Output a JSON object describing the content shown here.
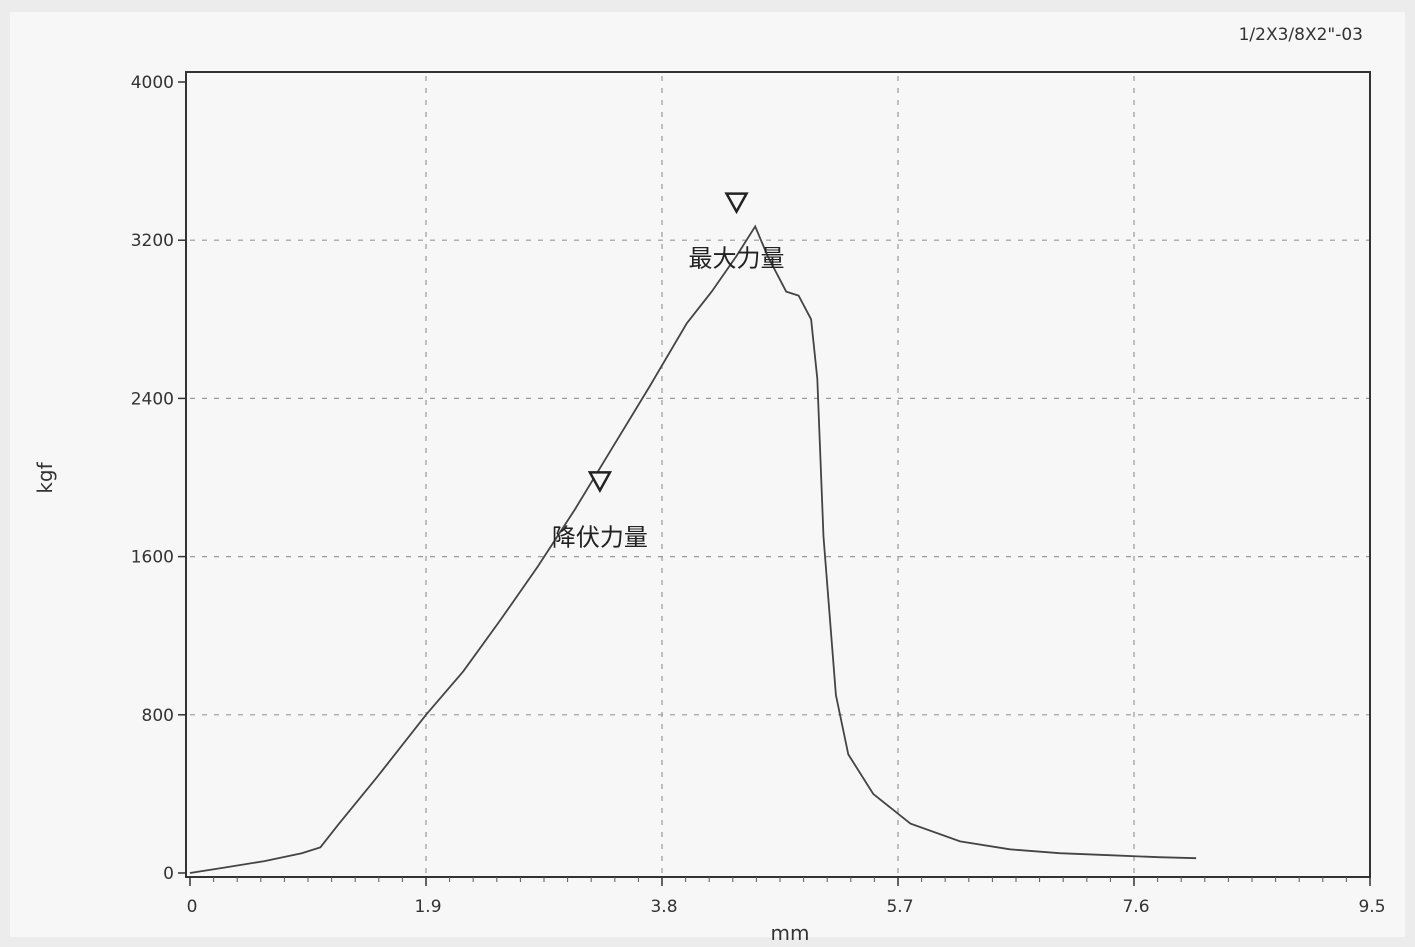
{
  "header_code": "1/2X3/8X2\"-03",
  "chart_data": {
    "type": "line",
    "xlabel": "mm",
    "ylabel": "kgf",
    "xlim": [
      0,
      9.5
    ],
    "ylim": [
      0,
      4000
    ],
    "x_ticks": [
      "0",
      "1.9",
      "3.8",
      "5.7",
      "7.6",
      "9.5"
    ],
    "y_ticks": [
      "0",
      "800",
      "1600",
      "2400",
      "3200",
      "4000"
    ],
    "grid": true,
    "series": [
      {
        "x": [
          0,
          0.3,
          0.6,
          0.9,
          1.05,
          1.2,
          1.5,
          1.9,
          2.2,
          2.5,
          2.8,
          3.1,
          3.4,
          3.7,
          4.0,
          4.2,
          4.4,
          4.55,
          4.65,
          4.8,
          4.9,
          5.0,
          5.05,
          5.1,
          5.2,
          5.3,
          5.5,
          5.8,
          6.2,
          6.6,
          7.0,
          7.4,
          7.8,
          8.1
        ],
        "y": [
          0,
          30,
          60,
          100,
          130,
          250,
          480,
          800,
          1020,
          1280,
          1550,
          1840,
          2150,
          2460,
          2780,
          2940,
          3120,
          3270,
          3120,
          2940,
          2920,
          2800,
          2500,
          1700,
          900,
          600,
          400,
          250,
          160,
          120,
          100,
          90,
          80,
          75
        ]
      }
    ],
    "annotations": [
      {
        "text": "降伏力量",
        "x": 3.3,
        "y": 1970
      },
      {
        "text": "最大力量",
        "x": 4.4,
        "y": 3380
      }
    ]
  }
}
